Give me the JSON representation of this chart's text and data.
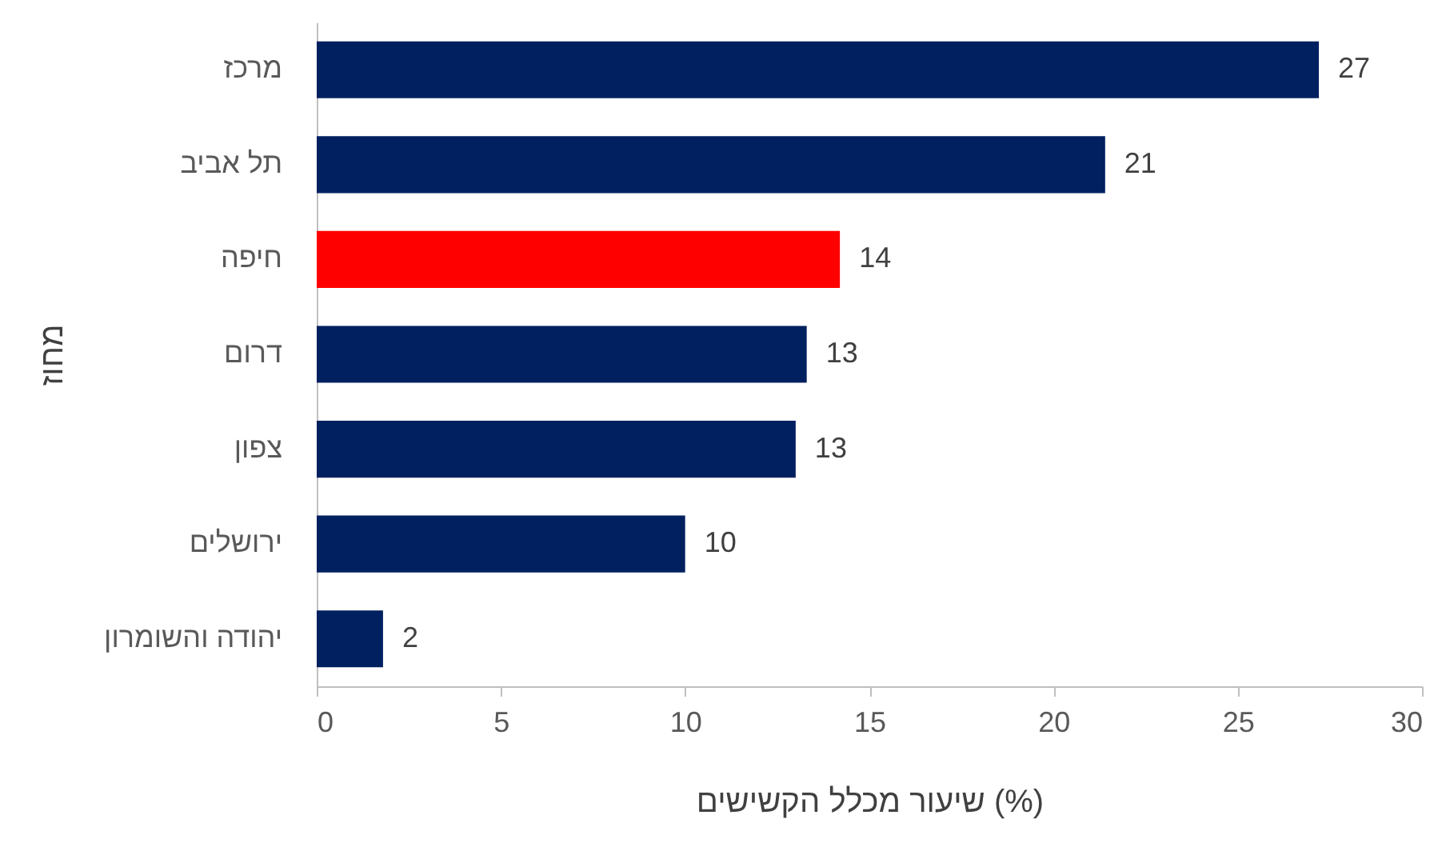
{
  "chart_data": {
    "type": "bar",
    "orientation": "horizontal",
    "xlabel": "שיעור מכלל הקשישים (%)",
    "ylabel": "מחוז",
    "categories": [
      "מרכז",
      "תל אביב",
      "חיפה",
      "דרום",
      "צפון",
      "ירושלים",
      "יהודה והשומרון"
    ],
    "values": [
      27.2,
      21.4,
      14.2,
      13.3,
      13.0,
      10.0,
      1.8
    ],
    "value_labels": [
      "27",
      "21",
      "14",
      "13",
      "13",
      "10",
      "2"
    ],
    "colors": [
      "#002060",
      "#002060",
      "#ff0000",
      "#002060",
      "#002060",
      "#002060",
      "#002060"
    ],
    "xlim": [
      0,
      30
    ],
    "xticks": [
      0,
      5,
      10,
      15,
      20,
      25,
      30
    ]
  }
}
